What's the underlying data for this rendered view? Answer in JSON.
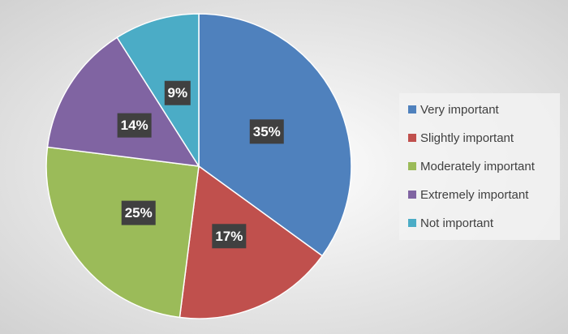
{
  "chart_data": {
    "type": "pie",
    "categories": [
      "Very important",
      "Slightly important",
      "Moderately important",
      "Extremely important",
      "Not important"
    ],
    "values": [
      35,
      17,
      25,
      14,
      9
    ],
    "value_labels": [
      "35%",
      "17%",
      "25%",
      "14%",
      "9%"
    ],
    "colors": [
      "#4f81bd",
      "#c0504d",
      "#9bbb59",
      "#8064a2",
      "#4bacc6"
    ],
    "legend": "right"
  }
}
